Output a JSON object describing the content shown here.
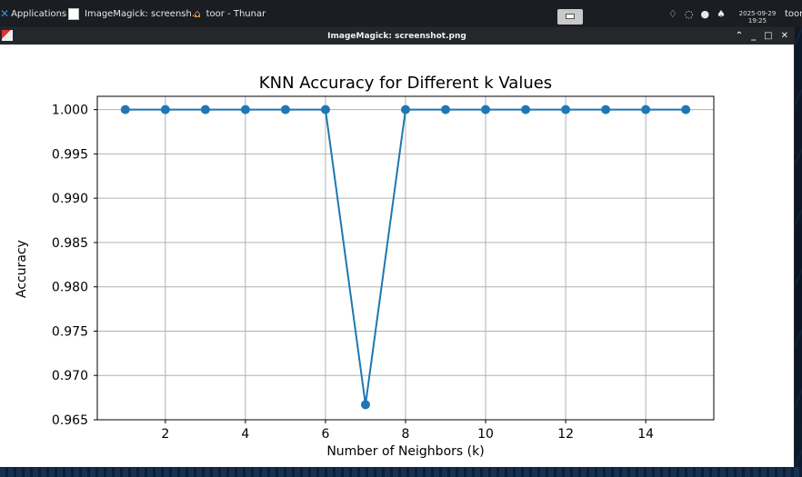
{
  "panel": {
    "apps_label": "Applications",
    "task1_label": "ImageMagick: screensh...",
    "task2_label": "toor - Thunar",
    "clock_date": "2025-09-29",
    "clock_time": "19:25",
    "user_label": "toor"
  },
  "window": {
    "title": "ImageMagick: screenshot.png"
  },
  "chart_data": {
    "type": "line",
    "title": "KNN Accuracy for Different k Values",
    "xlabel": "Number of Neighbors (k)",
    "ylabel": "Accuracy",
    "xlim": [
      0.3,
      15.7
    ],
    "ylim": [
      0.965,
      1.0015
    ],
    "xticks": [
      2,
      4,
      6,
      8,
      10,
      12,
      14
    ],
    "yticks": [
      0.965,
      0.97,
      0.975,
      0.98,
      0.985,
      0.99,
      0.995,
      1.0
    ],
    "ytick_labels": [
      "0.965",
      "0.970",
      "0.975",
      "0.980",
      "0.985",
      "0.990",
      "0.995",
      "1.000"
    ],
    "grid": true,
    "series": [
      {
        "color": "#1f77b4",
        "marker": "circle",
        "x": [
          1,
          2,
          3,
          4,
          5,
          6,
          7,
          8,
          9,
          10,
          11,
          12,
          13,
          14,
          15
        ],
        "y": [
          1.0,
          1.0,
          1.0,
          1.0,
          1.0,
          1.0,
          0.9667,
          1.0,
          1.0,
          1.0,
          1.0,
          1.0,
          1.0,
          1.0,
          1.0
        ]
      }
    ]
  }
}
